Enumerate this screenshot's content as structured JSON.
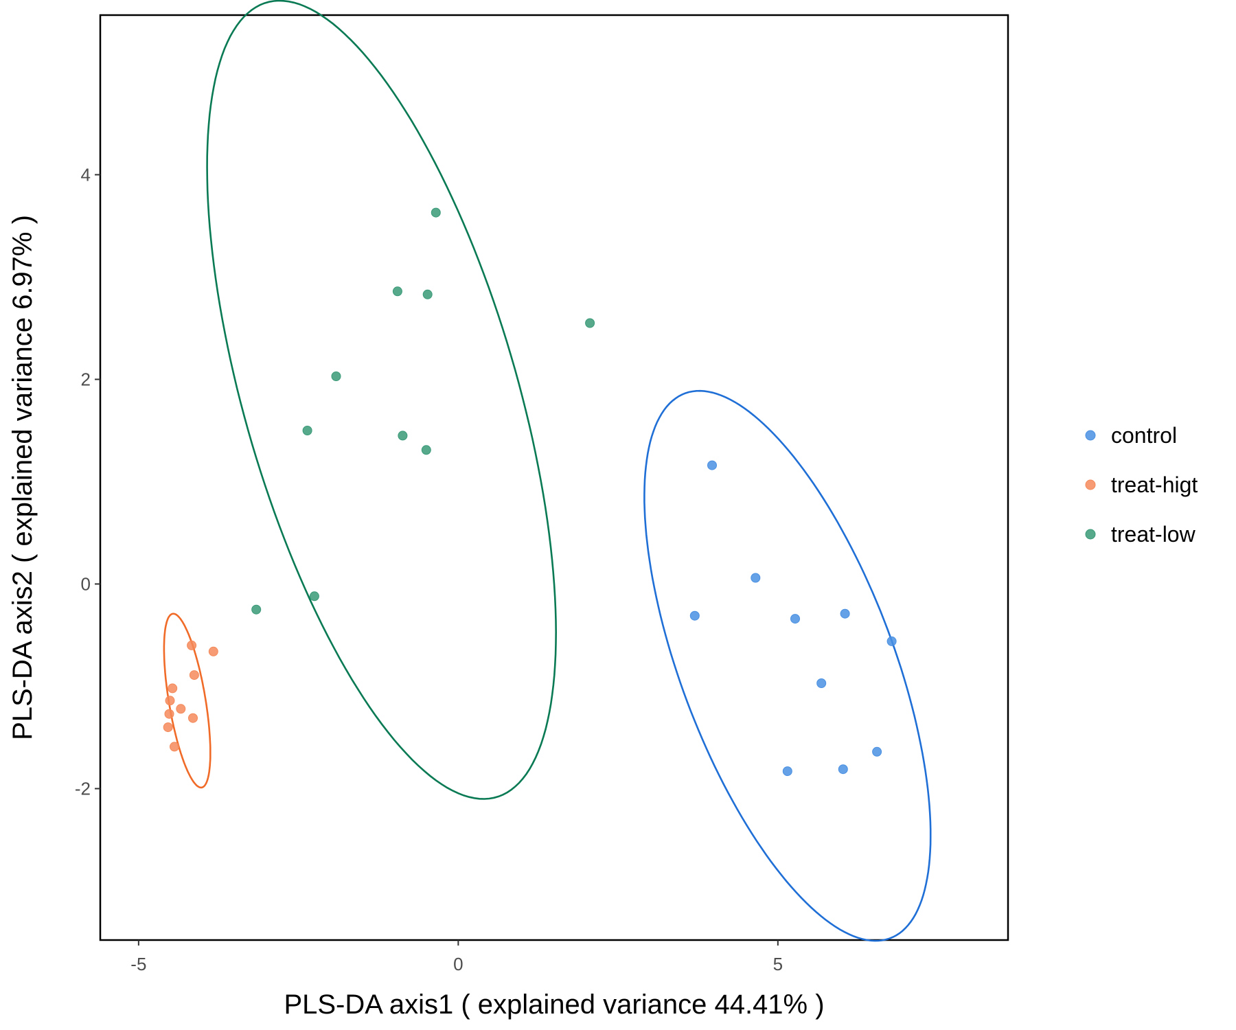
{
  "chart_data": {
    "type": "scatter",
    "title": "",
    "xlabel": "PLS-DA axis1 ( explained variance 44.41% )",
    "ylabel": "PLS-DA axis2 ( explained variance 6.97% )",
    "xlim": [
      -5.6,
      8.6
    ],
    "ylim": [
      -3.48,
      5.56
    ],
    "x_ticks": [
      -5,
      0,
      5
    ],
    "y_ticks": [
      -2,
      0,
      2,
      4
    ],
    "x_tick_labels": [
      "-5",
      "0",
      "5"
    ],
    "y_tick_labels": [
      "-2",
      "0",
      "2",
      "4"
    ],
    "grid": false,
    "legend_position": "right",
    "series": [
      {
        "name": "control",
        "color": "#4a90e2",
        "ellipse_color": "#1f6fd6",
        "points": [
          {
            "x": 3.97,
            "y": 1.16
          },
          {
            "x": 4.65,
            "y": 0.06
          },
          {
            "x": 3.7,
            "y": -0.31
          },
          {
            "x": 5.27,
            "y": -0.34
          },
          {
            "x": 6.05,
            "y": -0.29
          },
          {
            "x": 6.78,
            "y": -0.56
          },
          {
            "x": 5.68,
            "y": -0.97
          },
          {
            "x": 6.55,
            "y": -1.64
          },
          {
            "x": 5.15,
            "y": -1.83
          },
          {
            "x": 6.02,
            "y": -1.81
          }
        ]
      },
      {
        "name": "treat-higt",
        "color": "#f4895a",
        "ellipse_color": "#f06a28",
        "points": [
          {
            "x": -4.17,
            "y": -0.6
          },
          {
            "x": -3.83,
            "y": -0.66
          },
          {
            "x": -4.13,
            "y": -0.89
          },
          {
            "x": -4.47,
            "y": -1.02
          },
          {
            "x": -4.51,
            "y": -1.14
          },
          {
            "x": -4.34,
            "y": -1.22
          },
          {
            "x": -4.52,
            "y": -1.27
          },
          {
            "x": -4.15,
            "y": -1.31
          },
          {
            "x": -4.54,
            "y": -1.4
          },
          {
            "x": -4.44,
            "y": -1.59
          }
        ]
      },
      {
        "name": "treat-low",
        "color": "#3a9a78",
        "ellipse_color": "#0a7a55",
        "points": [
          {
            "x": -0.35,
            "y": 3.63
          },
          {
            "x": -0.95,
            "y": 2.86
          },
          {
            "x": -0.48,
            "y": 2.83
          },
          {
            "x": 2.06,
            "y": 2.55
          },
          {
            "x": -1.91,
            "y": 2.03
          },
          {
            "x": -2.36,
            "y": 1.5
          },
          {
            "x": -0.87,
            "y": 1.45
          },
          {
            "x": -0.5,
            "y": 1.31
          },
          {
            "x": -2.25,
            "y": -0.12
          },
          {
            "x": -3.16,
            "y": -0.25
          }
        ]
      }
    ],
    "ellipses": [
      {
        "series": "control",
        "cx": 5.15,
        "cy": -0.8,
        "a": 3.16,
        "b": 1.5,
        "angle_deg": -53.3
      },
      {
        "series": "treat-higt",
        "cx": -4.24,
        "cy": -1.14,
        "a": 0.88,
        "b": 0.28,
        "angle_deg": -74
      },
      {
        "series": "treat-low",
        "cx": -1.2,
        "cy": 1.8,
        "a": 4.32,
        "b": 2.0,
        "angle_deg": -61
      }
    ]
  }
}
